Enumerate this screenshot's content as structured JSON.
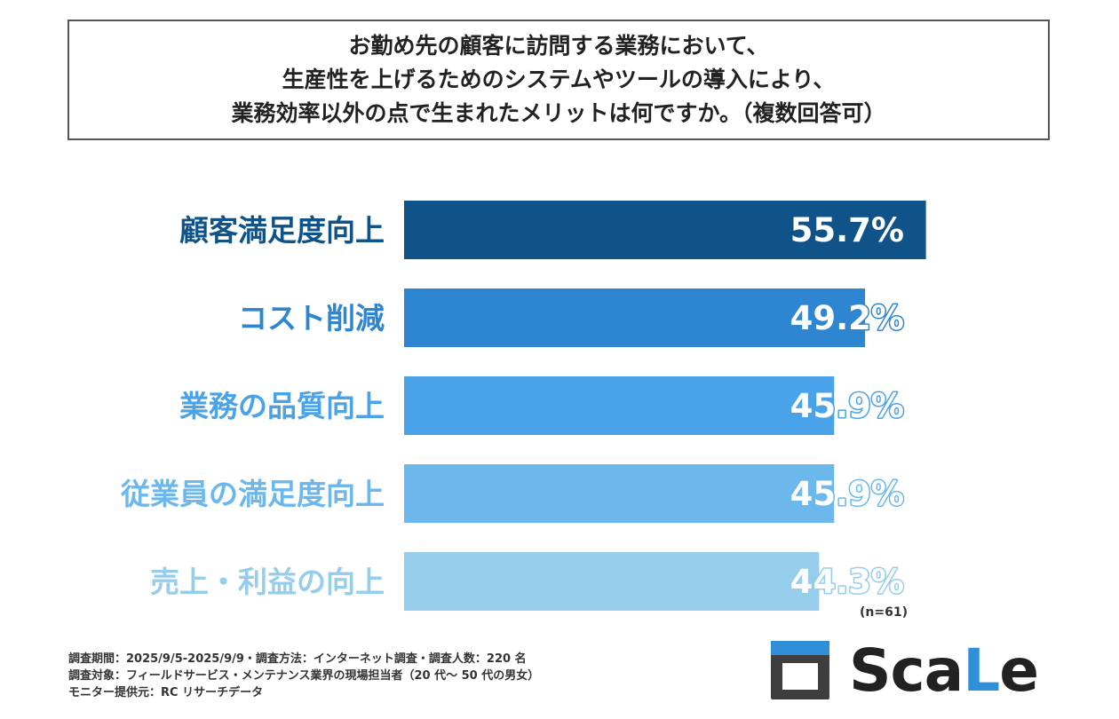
{
  "title": {
    "lines": [
      "お勤め先の顧客に訪問する業務において、",
      "生産性を上げるためのシステムやツールの導入により、",
      "業務効率以外の点で生まれたメリットは何ですか。（複数回答可）"
    ]
  },
  "chart_data": {
    "type": "bar",
    "orientation": "horizontal",
    "categories": [
      "顧客満足度向上",
      "コスト削減",
      "業務の品質向上",
      "従業員の満足度向上",
      "売上・利益の向上"
    ],
    "values": [
      55.7,
      49.2,
      45.9,
      45.9,
      44.3
    ],
    "value_labels": [
      "55.7%",
      "49.2%",
      "45.9%",
      "45.9%",
      "44.3%"
    ],
    "unit": "%",
    "bar_colors": [
      "#0f5388",
      "#2e85d0",
      "#4aa2e8",
      "#6cb8ed",
      "#96cdeb"
    ],
    "grid": false,
    "legend": "none"
  },
  "sample_size": "(n=61)",
  "footnotes": [
    "調査期間：2025/9/5-2025/9/9・調査方法：インターネット調査・調査人数：220 名",
    "調査対象：フィールドサービス・メンテナンス業界の現場担当者（20 代～ 50 代の男女）",
    "モニター提供元：RC リサーチデータ"
  ],
  "logo": {
    "text_part1": "Sca",
    "text_accent": "L",
    "text_part2": "e",
    "accent_color": "#2f8fd8",
    "icon": "calendar-icon"
  }
}
